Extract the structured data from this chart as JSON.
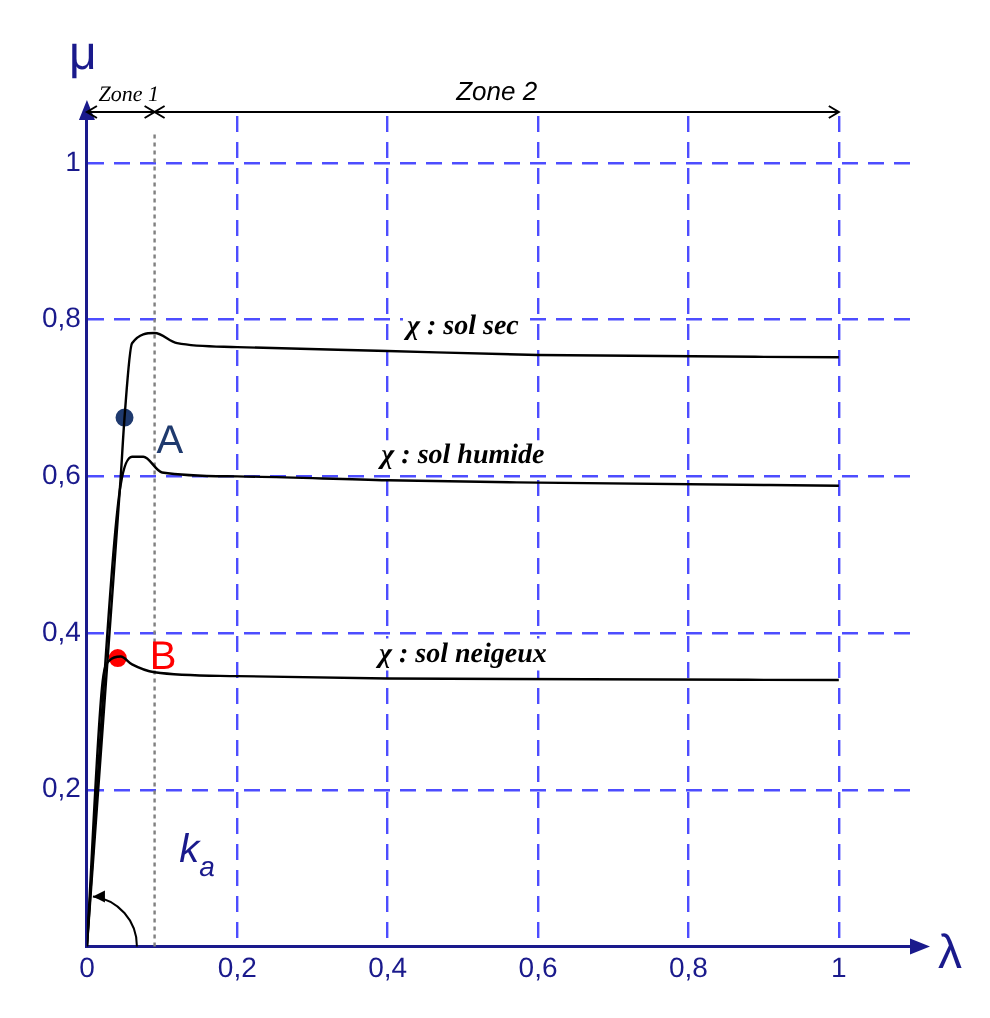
{
  "chart_data": {
    "type": "line",
    "xlabel": "λ",
    "ylabel": "μ",
    "xlim": [
      0,
      1.1
    ],
    "ylim": [
      0,
      1.06
    ],
    "xticks": [
      {
        "value": 0,
        "label": "0"
      },
      {
        "value": 0.2,
        "label": "0,2"
      },
      {
        "value": 0.4,
        "label": "0,4"
      },
      {
        "value": 0.6,
        "label": "0,6"
      },
      {
        "value": 0.8,
        "label": "0,8"
      },
      {
        "value": 1,
        "label": "1"
      }
    ],
    "yticks": [
      {
        "value": 0,
        "label": null
      },
      {
        "value": 0.2,
        "label": "0,2"
      },
      {
        "value": 0.4,
        "label": "0,4"
      },
      {
        "value": 0.6,
        "label": "0,6"
      },
      {
        "value": 0.8,
        "label": "0,8"
      },
      {
        "value": 1,
        "label": "1"
      }
    ],
    "grid": true,
    "legend": false,
    "marker": "none",
    "line_style": "solid",
    "series": [
      {
        "name": "χ : sol sec",
        "color": "#000000",
        "x": [
          0,
          0.03,
          0.045,
          0.05,
          0.06,
          0.09,
          0.12,
          0.2,
          0.4,
          0.6,
          1
        ],
        "values": [
          0,
          0.4,
          0.6,
          0.675,
          0.77,
          0.783,
          0.77,
          0.765,
          0.76,
          0.755,
          0.752
        ]
      },
      {
        "name": "χ : sol humide",
        "color": "#000000",
        "x": [
          0,
          0.035,
          0.045,
          0.06,
          0.075,
          0.1,
          0.2,
          0.4,
          0.6,
          1
        ],
        "values": [
          0,
          0.5,
          0.59,
          0.625,
          0.625,
          0.605,
          0.6,
          0.595,
          0.592,
          0.588
        ]
      },
      {
        "name": "χ : sol neigeux",
        "color": "#000000",
        "x": [
          0,
          0.02,
          0.03,
          0.045,
          0.06,
          0.09,
          0.2,
          0.4,
          1
        ],
        "values": [
          0,
          0.33,
          0.365,
          0.37,
          0.36,
          0.35,
          0.345,
          0.342,
          0.34
        ]
      },
      {
        "name": "A",
        "type": "scatter",
        "marker": "circle",
        "color": "#1f3a6e",
        "x": [
          0.05
        ],
        "values": [
          0.675
        ]
      },
      {
        "name": "B",
        "type": "scatter",
        "marker": "circle",
        "color": "#ff0000",
        "x": [
          0.041
        ],
        "values": [
          0.368
        ]
      }
    ],
    "ref_lines": [
      {
        "axis": "x",
        "value": 0.09,
        "label": null,
        "color": "#808080",
        "line_style": "dotted"
      }
    ],
    "annotations": [
      "Zone 1",
      "Zone 2",
      "k$_{a}$"
    ]
  }
}
